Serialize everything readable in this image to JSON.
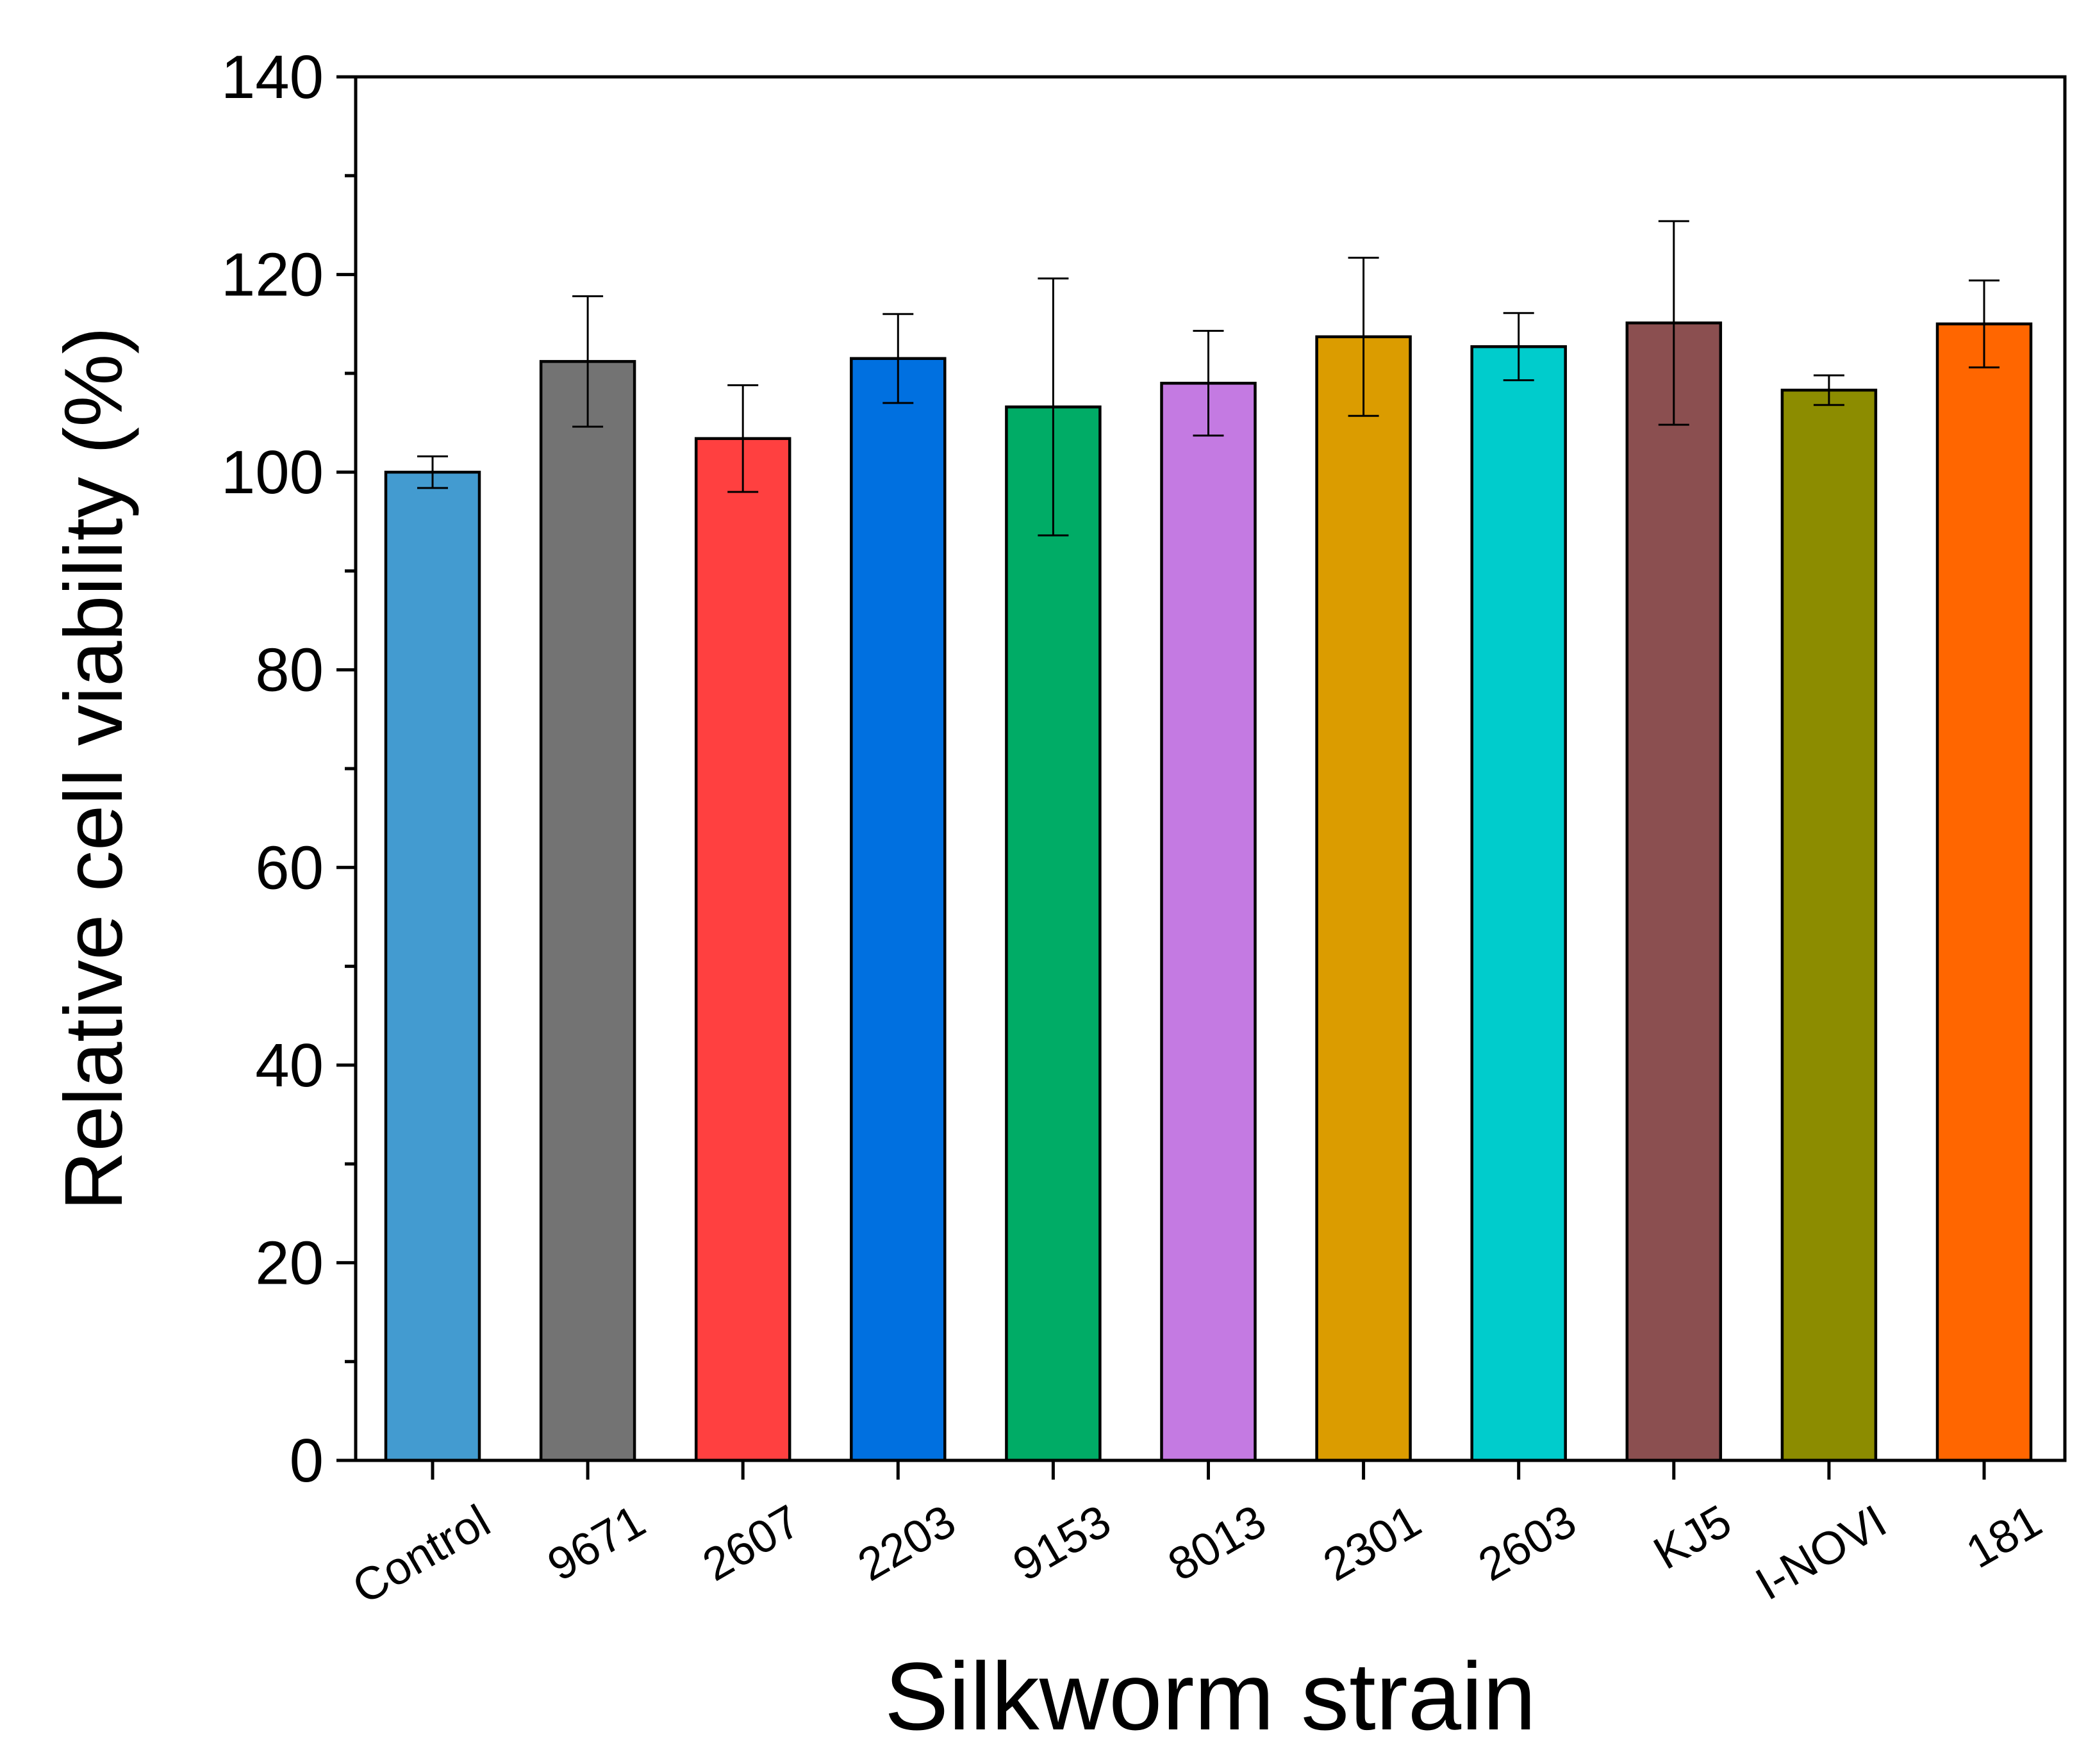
{
  "chart_data": {
    "type": "bar",
    "title": "",
    "xlabel": "Silkworm strain",
    "ylabel": "Relative cell viability (%)",
    "ylim": [
      0,
      140
    ],
    "yticks": [
      0,
      20,
      40,
      60,
      80,
      100,
      120,
      140
    ],
    "grid": false,
    "categories": [
      "Control",
      "9671",
      "2607",
      "2203",
      "9153",
      "8013",
      "2301",
      "2603",
      "KJ5",
      "I-NOVI",
      "181"
    ],
    "values": [
      100,
      111.2,
      103.4,
      111.5,
      106.6,
      109.0,
      113.7,
      112.7,
      115.1,
      108.3,
      115.0
    ],
    "errors": [
      1.6,
      6.6,
      5.4,
      4.5,
      13.0,
      5.3,
      8.0,
      3.4,
      10.3,
      1.5,
      4.4
    ],
    "colors": [
      "#439BD0",
      "#737373",
      "#FF4040",
      "#0070E0",
      "#00AC66",
      "#C47AE2",
      "#DB9C00",
      "#00CCCC",
      "#8B4F50",
      "#8C8C00",
      "#FF6600"
    ]
  }
}
